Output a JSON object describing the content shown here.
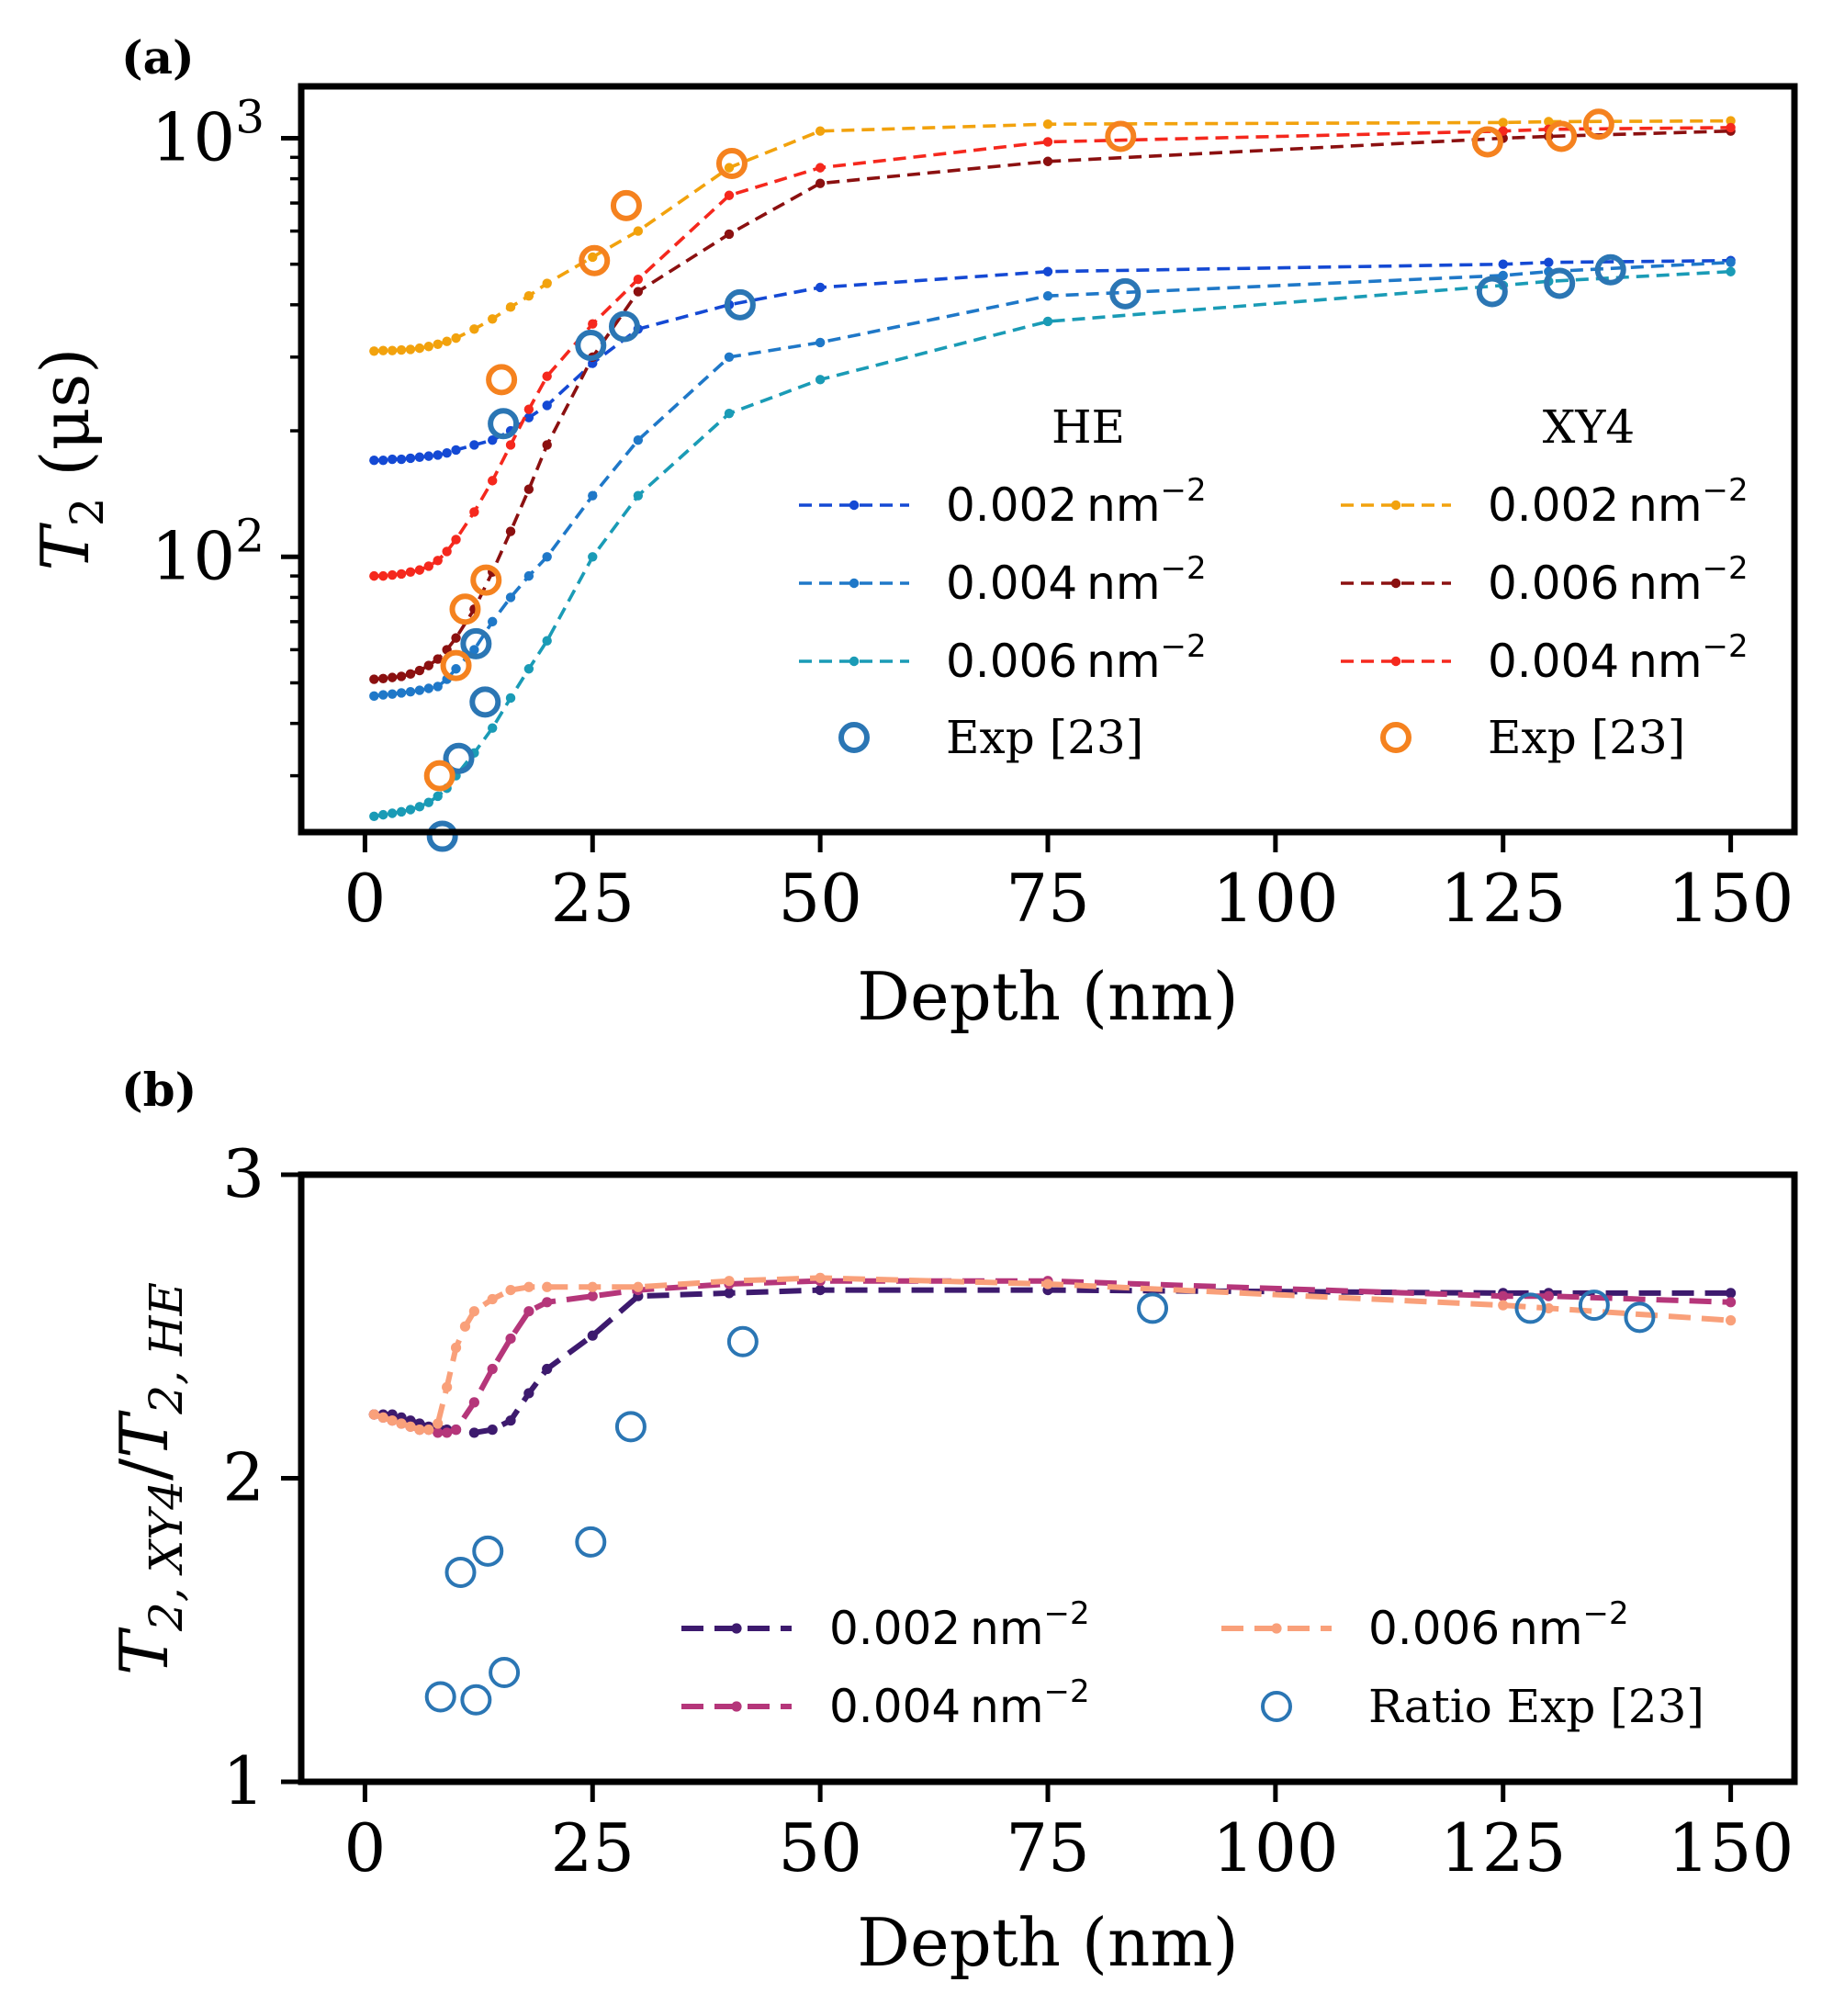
{
  "figure": {
    "panel_a_label": "(a)",
    "panel_b_label": "(b)"
  },
  "chart_data": [
    {
      "id": "a",
      "type": "line",
      "yscale": "log",
      "xlabel": "Depth (nm)",
      "ylabel": {
        "main": "T",
        "sub": "2",
        "unit": " (μs)"
      },
      "xlim": [
        -7,
        157
      ],
      "ylim": [
        22,
        1330
      ],
      "xticks": [
        0,
        25,
        50,
        75,
        100,
        125,
        150
      ],
      "xtick_labels": [
        "0",
        "25",
        "50",
        "75",
        "100",
        "125",
        "150"
      ],
      "yticks": [
        100,
        1000
      ],
      "ytick_labels": [
        {
          "base": "10",
          "exp": "2"
        },
        {
          "base": "10",
          "exp": "3"
        }
      ],
      "legend": {
        "placement": "center-right",
        "columns": [
          {
            "title": "HE",
            "entries": [
              {
                "series": "HE 0.002 nm⁻²",
                "label": "0.002",
                "unit": "nm",
                "exp": "−2"
              },
              {
                "series": "HE 0.004 nm⁻²",
                "label": "0.004",
                "unit": "nm",
                "exp": "−2"
              },
              {
                "series": "HE 0.006 nm⁻²",
                "label": "0.006",
                "unit": "nm",
                "exp": "−2"
              },
              {
                "series": "HE Exp [23]",
                "label": "Exp [23]"
              }
            ]
          },
          {
            "title": "XY4",
            "entries": [
              {
                "series": "XY4 0.002 nm⁻²",
                "label": "0.002",
                "unit": "nm",
                "exp": "−2"
              },
              {
                "series": "XY4 0.006 nm⁻²",
                "label": "0.006",
                "unit": "nm",
                "exp": "−2"
              },
              {
                "series": "XY4 0.004 nm⁻²",
                "label": "0.004",
                "unit": "nm",
                "exp": "−2"
              },
              {
                "series": "XY4 Exp [23]",
                "label": "Exp [23]"
              }
            ]
          }
        ]
      },
      "series": [
        {
          "name": "HE 0.002 nm⁻²",
          "color": "#1449d4",
          "style": "dashed",
          "x": [
            1,
            2,
            3,
            4,
            5,
            6,
            7,
            8,
            9,
            10,
            12,
            14,
            16,
            18,
            20,
            25,
            30,
            40,
            50,
            75,
            125,
            130,
            150
          ],
          "y": [
            170,
            170,
            171,
            171,
            172,
            173,
            174,
            175,
            177,
            180,
            185,
            190,
            200,
            215,
            230,
            290,
            350,
            400,
            440,
            480,
            500,
            505,
            510
          ]
        },
        {
          "name": "HE 0.004 nm⁻²",
          "color": "#1f78c8",
          "style": "dashed",
          "x": [
            1,
            2,
            3,
            4,
            5,
            6,
            7,
            8,
            9,
            10,
            12,
            14,
            16,
            18,
            20,
            25,
            30,
            40,
            50,
            75,
            125,
            130,
            150
          ],
          "y": [
            46.5,
            46.8,
            47,
            47.3,
            47.6,
            48,
            48.5,
            49,
            51,
            54,
            60,
            70,
            80,
            90,
            100,
            140,
            190,
            300,
            325,
            420,
            470,
            480,
            505
          ]
        },
        {
          "name": "HE 0.006 nm⁻²",
          "color": "#1a9bb6",
          "style": "dashed",
          "x": [
            1,
            2,
            3,
            4,
            5,
            6,
            7,
            8,
            9,
            10,
            12,
            14,
            16,
            18,
            20,
            25,
            30,
            40,
            50,
            75,
            125,
            130,
            150
          ],
          "y": [
            24,
            24.2,
            24.4,
            24.6,
            24.9,
            25.3,
            25.9,
            26.8,
            28,
            30,
            34,
            39,
            46,
            54,
            63,
            100,
            140,
            220,
            265,
            365,
            445,
            455,
            480
          ]
        },
        {
          "name": "XY4 0.002 nm⁻²",
          "color": "#f2a20d",
          "style": "dashed",
          "x": [
            1,
            2,
            3,
            4,
            5,
            6,
            7,
            8,
            9,
            10,
            12,
            14,
            16,
            18,
            20,
            25,
            30,
            40,
            50,
            75,
            125,
            130,
            150
          ],
          "y": [
            310,
            311,
            311,
            312,
            313,
            315,
            318,
            322,
            327,
            333,
            350,
            370,
            395,
            420,
            450,
            520,
            600,
            850,
            1040,
            1080,
            1090,
            1095,
            1100
          ]
        },
        {
          "name": "XY4 0.006 nm⁻²",
          "color": "#8b1010",
          "style": "dashed",
          "x": [
            1,
            2,
            3,
            4,
            5,
            6,
            7,
            8,
            9,
            10,
            12,
            14,
            16,
            18,
            20,
            25,
            30,
            40,
            50,
            75,
            125,
            130,
            150
          ],
          "y": [
            51,
            51.2,
            51.5,
            51.8,
            52.5,
            53.5,
            55,
            57,
            60,
            64,
            75,
            92,
            115,
            145,
            185,
            300,
            430,
            590,
            780,
            880,
            1000,
            1010,
            1040
          ]
        },
        {
          "name": "XY4 0.004 nm⁻²",
          "color": "#f5281d",
          "style": "dashed",
          "x": [
            1,
            2,
            3,
            4,
            5,
            6,
            7,
            8,
            9,
            10,
            12,
            14,
            16,
            18,
            20,
            25,
            30,
            40,
            50,
            75,
            125,
            130,
            150
          ],
          "y": [
            90,
            90,
            90.5,
            91,
            92,
            93,
            95,
            98,
            103,
            110,
            128,
            152,
            185,
            225,
            270,
            360,
            460,
            730,
            850,
            980,
            1040,
            1050,
            1060
          ]
        },
        {
          "name": "HE Exp [23]",
          "color": "#2b76b4",
          "style": "markers",
          "x": [
            8.5,
            10.3,
            12.2,
            13.2,
            15.2,
            24.8,
            28.5,
            41.2,
            83.5,
            123.8,
            131.2,
            136.8
          ],
          "y": [
            21.5,
            33,
            62,
            45,
            208,
            320,
            355,
            400,
            425,
            430,
            450,
            485
          ]
        },
        {
          "name": "XY4 Exp [23]",
          "color": "#f5821f",
          "style": "markers",
          "x": [
            8.2,
            10,
            11,
            13.3,
            15,
            25.2,
            28.7,
            40.3,
            83,
            123.3,
            131.4,
            135.5
          ],
          "y": [
            30,
            55,
            75,
            88,
            265,
            510,
            690,
            870,
            1010,
            980,
            1010,
            1080
          ]
        }
      ]
    },
    {
      "id": "b",
      "type": "line",
      "xlabel": "Depth (nm)",
      "ylabel": {
        "main": "T",
        "sub1": "2, XY4",
        "slash": "/",
        "main2": "T",
        "sub2": "2, HE"
      },
      "xlim": [
        -7,
        157
      ],
      "ylim": [
        1,
        3
      ],
      "xticks": [
        0,
        25,
        50,
        75,
        100,
        125,
        150
      ],
      "xtick_labels": [
        "0",
        "25",
        "50",
        "75",
        "100",
        "125",
        "150"
      ],
      "yticks": [
        1,
        2,
        3
      ],
      "ytick_labels": [
        "1",
        "2",
        "3"
      ],
      "legend": {
        "placement": "lower-right",
        "columns": [
          {
            "entries": [
              {
                "series": "0.002 nm⁻²",
                "label": "0.002",
                "unit": "nm",
                "exp": "−2"
              },
              {
                "series": "0.004 nm⁻²",
                "label": "0.004",
                "unit": "nm",
                "exp": "−2"
              }
            ]
          },
          {
            "entries": [
              {
                "series": "0.006 nm⁻²",
                "label": "0.006",
                "unit": "nm",
                "exp": "−2"
              },
              {
                "series": "Ratio Exp [23]",
                "label": "Ratio Exp [23]"
              }
            ]
          }
        ]
      },
      "series": [
        {
          "name": "0.002 nm⁻²",
          "color": "#3d1a6e",
          "style": "dashed-thick",
          "x": [
            1,
            2,
            3,
            4,
            5,
            6,
            7,
            8,
            9,
            10,
            12,
            14,
            16,
            18,
            20,
            25,
            30,
            40,
            50,
            75,
            125,
            130,
            150
          ],
          "y": [
            2.21,
            2.21,
            2.21,
            2.2,
            2.19,
            2.18,
            2.17,
            2.17,
            2.16,
            2.16,
            2.15,
            2.16,
            2.19,
            2.28,
            2.36,
            2.47,
            2.6,
            2.61,
            2.62,
            2.62,
            2.61,
            2.61,
            2.61
          ]
        },
        {
          "name": "0.004 nm⁻²",
          "color": "#b5367a",
          "style": "solid-dashed",
          "x": [
            1,
            2,
            3,
            4,
            5,
            6,
            7,
            8,
            9,
            10,
            12,
            14,
            16,
            18,
            20,
            25,
            30,
            40,
            50,
            75,
            125,
            130,
            150
          ],
          "y": [
            2.21,
            2.2,
            2.19,
            2.18,
            2.17,
            2.16,
            2.16,
            2.15,
            2.15,
            2.16,
            2.25,
            2.36,
            2.46,
            2.55,
            2.58,
            2.6,
            2.62,
            2.64,
            2.65,
            2.65,
            2.6,
            2.6,
            2.58
          ]
        },
        {
          "name": "0.006 nm⁻²",
          "color": "#f9a07a",
          "style": "dashed-thick",
          "x": [
            1,
            2,
            3,
            4,
            5,
            6,
            7,
            8,
            9,
            10,
            11,
            12,
            14,
            16,
            18,
            20,
            25,
            30,
            40,
            50,
            75,
            125,
            130,
            150
          ],
          "y": [
            2.21,
            2.2,
            2.19,
            2.18,
            2.17,
            2.16,
            2.16,
            2.18,
            2.3,
            2.43,
            2.5,
            2.55,
            2.59,
            2.62,
            2.63,
            2.63,
            2.63,
            2.63,
            2.65,
            2.66,
            2.64,
            2.57,
            2.56,
            2.52
          ]
        },
        {
          "name": "Ratio Exp [23]",
          "color": "#2b76b4",
          "style": "markers",
          "x": [
            8.3,
            10.5,
            12.2,
            13.5,
            15.3,
            24.8,
            29.2,
            41.5,
            86.5,
            128,
            135,
            140
          ],
          "y": [
            1.28,
            1.69,
            1.27,
            1.76,
            1.36,
            1.79,
            2.17,
            2.45,
            2.56,
            2.56,
            2.57,
            2.53
          ]
        }
      ]
    }
  ]
}
